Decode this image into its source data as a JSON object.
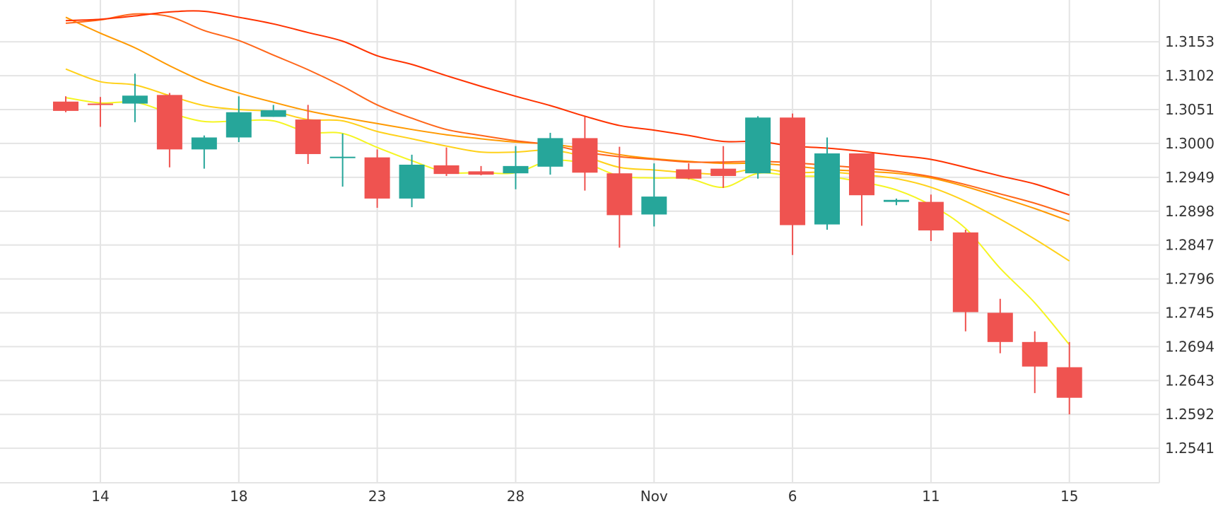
{
  "chart_data": {
    "type": "candlestick",
    "title": "",
    "xlabel": "",
    "ylabel": "",
    "x_tick_labels": [
      {
        "label": "14",
        "index": 1
      },
      {
        "label": "18",
        "index": 5
      },
      {
        "label": "23",
        "index": 9
      },
      {
        "label": "28",
        "index": 13
      },
      {
        "label": "Nov",
        "index": 17
      },
      {
        "label": "6",
        "index": 21
      },
      {
        "label": "11",
        "index": 25
      },
      {
        "label": "15",
        "index": 29
      }
    ],
    "y_ticks": [
      1.2541,
      1.2592,
      1.2643,
      1.2694,
      1.2745,
      1.2796,
      1.2847,
      1.2898,
      1.2949,
      1.3,
      1.3051,
      1.3102,
      1.3153
    ],
    "ylim": [
      1.2489,
      1.3216
    ],
    "xlim": [
      -1.9,
      31.6
    ],
    "grid": true,
    "up_color": "#26a69a",
    "down_color": "#ef5350",
    "candles": [
      {
        "o": 1.3063,
        "h": 1.3071,
        "l": 1.3047,
        "c": 1.3049
      },
      {
        "o": 1.306,
        "h": 1.307,
        "l": 1.3025,
        "c": 1.3059
      },
      {
        "o": 1.306,
        "h": 1.3105,
        "l": 1.3032,
        "c": 1.3072
      },
      {
        "o": 1.3073,
        "h": 1.3076,
        "l": 1.2964,
        "c": 1.2991
      },
      {
        "o": 1.2991,
        "h": 1.3012,
        "l": 1.2962,
        "c": 1.3009
      },
      {
        "o": 1.3009,
        "h": 1.3071,
        "l": 1.3002,
        "c": 1.3047
      },
      {
        "o": 1.304,
        "h": 1.3058,
        "l": 1.304,
        "c": 1.305
      },
      {
        "o": 1.3036,
        "h": 1.3058,
        "l": 1.2969,
        "c": 1.2984
      },
      {
        "o": 1.298,
        "h": 1.3015,
        "l": 1.2935,
        "c": 1.298
      },
      {
        "o": 1.2979,
        "h": 1.2991,
        "l": 1.2903,
        "c": 1.2917
      },
      {
        "o": 1.2917,
        "h": 1.2983,
        "l": 1.2904,
        "c": 1.2968
      },
      {
        "o": 1.2967,
        "h": 1.2994,
        "l": 1.2951,
        "c": 1.2954
      },
      {
        "o": 1.2958,
        "h": 1.2966,
        "l": 1.2952,
        "c": 1.2953
      },
      {
        "o": 1.2955,
        "h": 1.2996,
        "l": 1.2931,
        "c": 1.2966
      },
      {
        "o": 1.2965,
        "h": 1.3016,
        "l": 1.2953,
        "c": 1.3008
      },
      {
        "o": 1.3008,
        "h": 1.304,
        "l": 1.2929,
        "c": 1.2956
      },
      {
        "o": 1.2955,
        "h": 1.2995,
        "l": 1.2843,
        "c": 1.2892
      },
      {
        "o": 1.2893,
        "h": 1.297,
        "l": 1.2875,
        "c": 1.292
      },
      {
        "o": 1.2961,
        "h": 1.297,
        "l": 1.2946,
        "c": 1.2947
      },
      {
        "o": 1.2962,
        "h": 1.2996,
        "l": 1.2933,
        "c": 1.2951
      },
      {
        "o": 1.2955,
        "h": 1.3041,
        "l": 1.2947,
        "c": 1.3039
      },
      {
        "o": 1.3039,
        "h": 1.3045,
        "l": 1.2832,
        "c": 1.2877
      },
      {
        "o": 1.2878,
        "h": 1.3009,
        "l": 1.287,
        "c": 1.2985
      },
      {
        "o": 1.2985,
        "h": 1.2985,
        "l": 1.2876,
        "c": 1.2922
      },
      {
        "o": 1.2912,
        "h": 1.2917,
        "l": 1.2907,
        "c": 1.2915
      },
      {
        "o": 1.2912,
        "h": 1.2923,
        "l": 1.2853,
        "c": 1.2869
      },
      {
        "o": 1.2866,
        "h": 1.287,
        "l": 1.2717,
        "c": 1.2746
      },
      {
        "o": 1.2745,
        "h": 1.2766,
        "l": 1.2684,
        "c": 1.2701
      },
      {
        "o": 1.2701,
        "h": 1.2717,
        "l": 1.2624,
        "c": 1.2664
      },
      {
        "o": 1.2663,
        "h": 1.2701,
        "l": 1.2592,
        "c": 1.2617
      }
    ],
    "ma_lines": [
      {
        "color": "#f5f522",
        "values": [
          1.3069,
          1.3061,
          1.3062,
          1.3046,
          1.3033,
          1.3034,
          1.3034,
          1.3017,
          1.3015,
          1.2994,
          1.2974,
          1.2957,
          1.2956,
          1.2956,
          1.2974,
          1.297,
          1.2951,
          1.2948,
          1.2947,
          1.2934,
          1.2955,
          1.2951,
          1.295,
          1.2942,
          1.293,
          1.2907,
          1.2872,
          1.2812,
          1.276,
          1.2697
        ]
      },
      {
        "color": "#ffd119",
        "values": [
          1.3112,
          1.3093,
          1.3088,
          1.3072,
          1.3057,
          1.3051,
          1.3048,
          1.3036,
          1.3034,
          1.3018,
          1.3007,
          1.2996,
          1.2987,
          1.2987,
          1.299,
          1.298,
          1.2964,
          1.296,
          1.2956,
          1.2954,
          1.2962,
          1.2956,
          1.2957,
          1.2953,
          1.2947,
          1.2934,
          1.2913,
          1.2886,
          1.2856,
          1.2823
        ]
      },
      {
        "color": "#ff9900",
        "values": [
          1.319,
          1.3166,
          1.3144,
          1.3117,
          1.3093,
          1.3076,
          1.3062,
          1.3049,
          1.3039,
          1.303,
          1.3021,
          1.3013,
          1.3007,
          1.3002,
          1.2999,
          1.2992,
          1.2983,
          1.2977,
          1.2973,
          1.297,
          1.297,
          1.2966,
          1.2961,
          1.2958,
          1.2955,
          1.2948,
          1.2935,
          1.2919,
          1.2902,
          1.2883
        ]
      },
      {
        "color": "#ff6619",
        "values": [
          1.3181,
          1.3186,
          1.3195,
          1.3191,
          1.317,
          1.3155,
          1.3133,
          1.3111,
          1.3086,
          1.3058,
          1.3038,
          1.3021,
          1.3012,
          1.3004,
          1.2998,
          1.2987,
          1.298,
          1.2976,
          1.2972,
          1.2972,
          1.2973,
          1.2971,
          1.2967,
          1.2963,
          1.2958,
          1.295,
          1.2938,
          1.2924,
          1.291,
          1.2893
        ]
      },
      {
        "color": "#ff3300",
        "values": [
          1.3185,
          1.3187,
          1.3192,
          1.3198,
          1.3199,
          1.319,
          1.318,
          1.3167,
          1.3154,
          1.3132,
          1.3119,
          1.3102,
          1.3086,
          1.3071,
          1.3057,
          1.3041,
          1.3027,
          1.302,
          1.3012,
          1.3003,
          1.3003,
          1.2996,
          1.2993,
          1.2988,
          1.2982,
          1.2976,
          1.2964,
          1.2951,
          1.2939,
          1.2922
        ]
      }
    ]
  }
}
